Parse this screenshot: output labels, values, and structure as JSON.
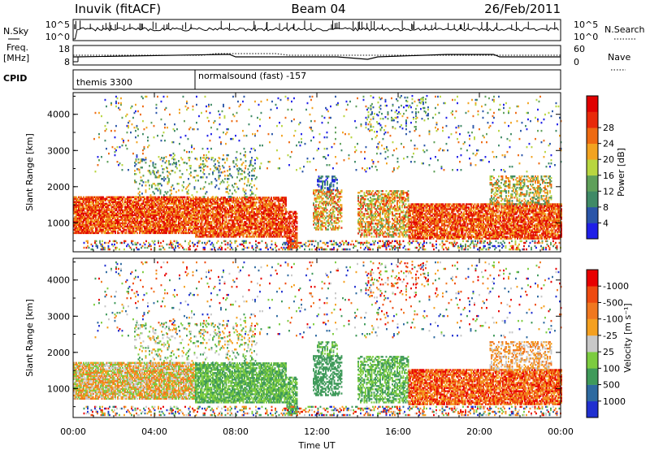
{
  "header": {
    "station": "Inuvik (fitACF)",
    "beam": "Beam 04",
    "date": "26/Feb/2011"
  },
  "strip_labels": {
    "nsky": "N.Sky",
    "freq_line1": "Freq.",
    "freq_line2": "[MHz]",
    "cpid": "CPID",
    "nsearch": "N.Search",
    "nave": "Nave",
    "nsky_ticks": [
      "10^5",
      "10^0"
    ],
    "freq_ticks": [
      "18",
      "8"
    ],
    "nave_ticks": [
      "60",
      "0"
    ],
    "nsearch_ticks": [
      "10^5",
      "10^0"
    ]
  },
  "cpid_segments": [
    {
      "start_hour": 0,
      "label": "themis 3300"
    },
    {
      "start_hour": 6,
      "label": "normalsound (fast) -157"
    }
  ],
  "colors": {
    "power_scale": [
      "#1f1fe8",
      "#2a55a8",
      "#3f8a66",
      "#5fa05a",
      "#b8d640",
      "#f2a320",
      "#ee6a12",
      "#e82a0a",
      "#e00000"
    ],
    "velocity_scale": [
      "#e80000",
      "#ee4a10",
      "#f07820",
      "#f4a020",
      "#c8c8c8",
      "#7ccc40",
      "#3f9a5a",
      "#2e6aa0",
      "#2030d0"
    ]
  },
  "chart_data": [
    {
      "type": "heatmap",
      "name": "power",
      "xlabel": "",
      "ylabel": "Slant Range [km]",
      "xlim": [
        0,
        24
      ],
      "ylim": [
        200,
        4600
      ],
      "yticks": [
        "1000",
        "2000",
        "3000",
        "4000"
      ],
      "colorbar": {
        "label": "Power [dB]",
        "ticks": [
          "4",
          "8",
          "12",
          "16",
          "20",
          "24",
          "28"
        ]
      }
    },
    {
      "type": "heatmap",
      "name": "velocity",
      "xlabel": "Time UT",
      "ylabel": "Slant Range [km]",
      "xlim": [
        0,
        24
      ],
      "ylim": [
        200,
        4600
      ],
      "xticks": [
        "00:00",
        "04:00",
        "08:00",
        "12:00",
        "16:00",
        "20:00",
        "00:00"
      ],
      "yticks": [
        "1000",
        "2000",
        "3000",
        "4000"
      ],
      "colorbar": {
        "label": "Velocity [m s⁻¹]",
        "ticks": [
          "1000",
          "500",
          "100",
          "25",
          "-25",
          "-100",
          "-500",
          "-1000"
        ]
      }
    }
  ]
}
